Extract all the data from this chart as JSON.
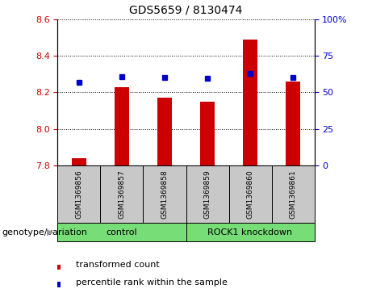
{
  "title": "GDS5659 / 8130474",
  "samples": [
    "GSM1369856",
    "GSM1369857",
    "GSM1369858",
    "GSM1369859",
    "GSM1369860",
    "GSM1369861"
  ],
  "red_values": [
    7.84,
    8.23,
    8.17,
    8.15,
    8.49,
    8.26
  ],
  "blue_values": [
    8.255,
    8.285,
    8.28,
    8.275,
    8.305,
    8.28
  ],
  "ylim_left": [
    7.8,
    8.6
  ],
  "ylim_right": [
    0,
    100
  ],
  "yticks_left": [
    7.8,
    8.0,
    8.2,
    8.4,
    8.6
  ],
  "yticks_right": [
    0,
    25,
    50,
    75,
    100
  ],
  "ytick_labels_right": [
    "0",
    "25",
    "50",
    "75",
    "100%"
  ],
  "legend_items": [
    {
      "label": "transformed count",
      "color": "#cc0000"
    },
    {
      "label": "percentile rank within the sample",
      "color": "#0000cc"
    }
  ],
  "bar_color": "#cc0000",
  "dot_color": "#0000cc",
  "bar_width": 0.35,
  "sample_box_color": "#c8c8c8",
  "control_color": "#77dd77",
  "knockdown_color": "#77dd77",
  "left_tick_color": "#cc0000",
  "right_tick_color": "#0000cc",
  "title_fontsize": 10,
  "axis_label_fontsize": 8,
  "sample_fontsize": 6.5,
  "group_fontsize": 8,
  "legend_fontsize": 8
}
